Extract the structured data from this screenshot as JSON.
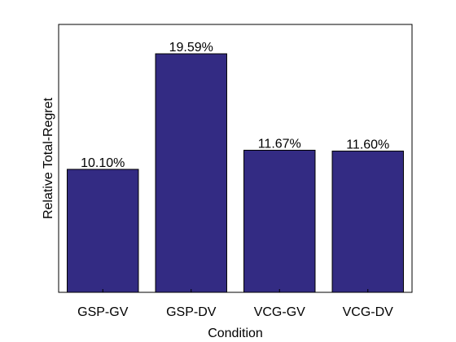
{
  "chart_data": {
    "type": "bar",
    "categories": [
      "GSP-GV",
      "GSP-DV",
      "VCG-GV",
      "VCG-DV"
    ],
    "values": [
      10.1,
      19.59,
      11.67,
      11.6
    ],
    "data_labels": [
      "10.10%",
      "19.59%",
      "11.67%",
      "11.60%"
    ],
    "xlabel": "Condition",
    "ylabel": "Relative Total-Regret",
    "ylim": [
      0,
      22
    ],
    "y_ticks_shown": false,
    "grid": false,
    "legend": "none",
    "colors": {
      "bar": "#332b83",
      "axes": "#000000",
      "text": "#000000"
    }
  }
}
